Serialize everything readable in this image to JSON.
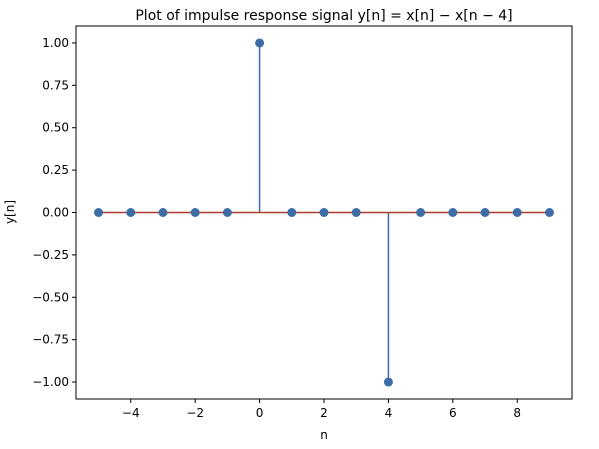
{
  "chart_data": {
    "type": "stem",
    "title": "Plot of impulse response signal y[n] = x[n] − x[n − 4]",
    "xlabel": "n",
    "ylabel": "y[n]",
    "xlim": [
      -5.7,
      9.7
    ],
    "ylim": [
      -1.1,
      1.1
    ],
    "x_ticks": [
      -4,
      -2,
      0,
      2,
      4,
      6,
      8
    ],
    "x_tick_labels": [
      "−4",
      "−2",
      "0",
      "2",
      "4",
      "6",
      "8"
    ],
    "y_ticks": [
      1.0,
      0.75,
      0.5,
      0.25,
      0.0,
      -0.25,
      -0.5,
      -0.75,
      -1.0
    ],
    "y_tick_labels": [
      "1.00",
      "0.75",
      "0.50",
      "0.25",
      "0.00",
      "−0.25",
      "−0.50",
      "−0.75",
      "−1.00"
    ],
    "x": [
      -5,
      -4,
      -3,
      -2,
      -1,
      0,
      1,
      2,
      3,
      4,
      5,
      6,
      7,
      8,
      9
    ],
    "values": [
      0,
      0,
      0,
      0,
      0,
      1,
      0,
      0,
      0,
      -1,
      0,
      0,
      0,
      0,
      0
    ],
    "grid": false,
    "colors": {
      "stem": "#3c6ea5",
      "marker": "#3c6ea5",
      "baseline": "#b03a2e"
    }
  }
}
